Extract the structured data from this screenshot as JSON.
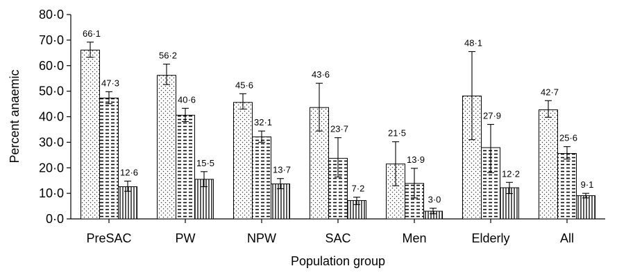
{
  "chart_data": {
    "type": "bar",
    "title": "",
    "xlabel": "Population group",
    "ylabel": "Percent anaemic",
    "ylim": [
      0,
      80
    ],
    "yticks": [
      0,
      10,
      20,
      30,
      40,
      50,
      60,
      70,
      80
    ],
    "ytick_labels": [
      "0·0",
      "10·0",
      "20·0",
      "30·0",
      "40·0",
      "50·0",
      "60·0",
      "70·0",
      "80·0"
    ],
    "categories": [
      "PreSAC",
      "PW",
      "NPW",
      "SAC",
      "Men",
      "Elderly",
      "All"
    ],
    "grid": false,
    "legend": "none",
    "series": [
      {
        "pattern": "dotted",
        "values": [
          66.1,
          56.2,
          45.6,
          43.6,
          21.5,
          48.1,
          42.7
        ],
        "labels": [
          "66·1",
          "56·2",
          "45·6",
          "43·6",
          "21·5",
          "48·1",
          "42·7"
        ],
        "err_low": [
          63.3,
          52.6,
          43.0,
          34.4,
          13.0,
          31.0,
          39.8
        ],
        "err_high": [
          69.2,
          60.6,
          49.0,
          53.1,
          30.2,
          65.5,
          46.3
        ]
      },
      {
        "pattern": "dashed",
        "values": [
          47.3,
          40.6,
          32.1,
          23.7,
          13.9,
          27.9,
          25.6
        ],
        "labels": [
          "47·3",
          "40·6",
          "32·1",
          "23·7",
          "13·9",
          "27·9",
          "25·6"
        ],
        "err_low": [
          45.1,
          38.1,
          30.0,
          16.4,
          8.2,
          18.1,
          23.4
        ],
        "err_high": [
          49.8,
          43.3,
          34.4,
          31.8,
          19.8,
          37.0,
          28.3
        ]
      },
      {
        "pattern": "vertical-lines",
        "values": [
          12.6,
          15.5,
          13.7,
          7.2,
          3.0,
          12.2,
          9.1
        ],
        "labels": [
          "12·6",
          "15·5",
          "13·7",
          "7·2",
          "3·0",
          "12·2",
          "9·1"
        ],
        "err_low": [
          10.8,
          12.6,
          11.8,
          5.6,
          2.0,
          9.9,
          8.2
        ],
        "err_high": [
          14.8,
          18.5,
          15.8,
          8.5,
          4.2,
          14.3,
          10.0
        ]
      }
    ]
  }
}
